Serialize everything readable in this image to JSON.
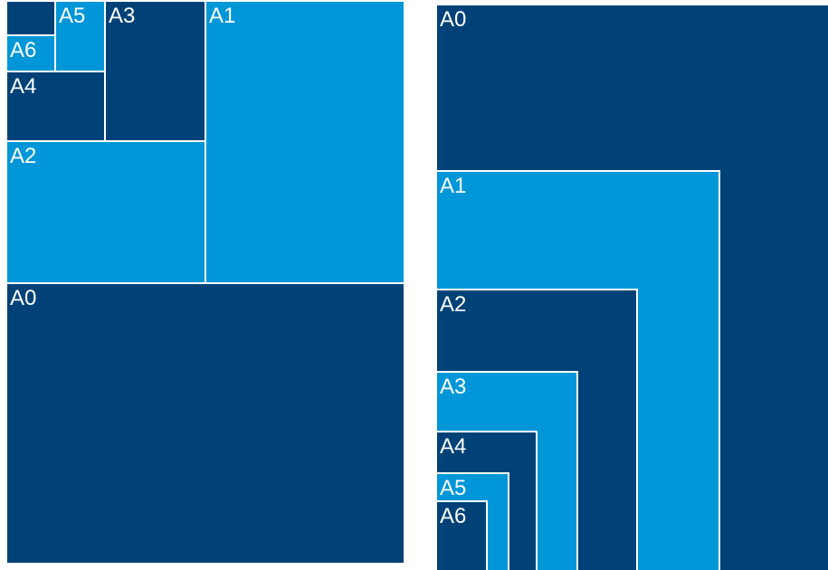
{
  "colors": {
    "dark": "#004277",
    "light": "#0096d7",
    "divider": "#ffffff",
    "background": "#ffffff"
  },
  "left_diagram": {
    "sheets": [
      {
        "id": "a0",
        "label": "A0",
        "color": "dark"
      },
      {
        "id": "a1",
        "label": "A1",
        "color": "light"
      },
      {
        "id": "a2",
        "label": "A2",
        "color": "light"
      },
      {
        "id": "a3",
        "label": "A3",
        "color": "dark"
      },
      {
        "id": "a4",
        "label": "A4",
        "color": "dark"
      },
      {
        "id": "a5",
        "label": "A5",
        "color": "light"
      },
      {
        "id": "a6",
        "label": "A6",
        "color": "light"
      },
      {
        "id": "a7",
        "label": "",
        "color": "dark"
      }
    ]
  },
  "right_diagram": {
    "sheets": [
      {
        "id": "a0",
        "label": "A0",
        "color": "dark"
      },
      {
        "id": "a1",
        "label": "A1",
        "color": "light"
      },
      {
        "id": "a2",
        "label": "A2",
        "color": "dark"
      },
      {
        "id": "a3",
        "label": "A3",
        "color": "light"
      },
      {
        "id": "a4",
        "label": "A4",
        "color": "dark"
      },
      {
        "id": "a5",
        "label": "A5",
        "color": "light"
      },
      {
        "id": "a6",
        "label": "A6",
        "color": "dark"
      }
    ]
  }
}
